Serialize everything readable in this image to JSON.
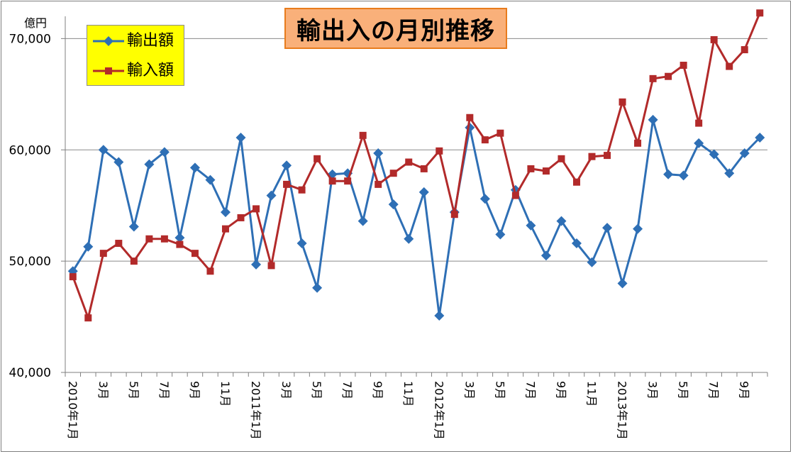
{
  "chart_data": {
    "type": "line",
    "title": "輸出入の月別推移",
    "unit_label": "億円",
    "ylim": [
      40000,
      72000
    ],
    "yticks": [
      40000,
      50000,
      60000,
      70000
    ],
    "ytick_labels": [
      "40,000",
      "50,000",
      "60,000",
      "70,000"
    ],
    "grid": true,
    "legend_position": "top-left",
    "x": [
      "2010年1月",
      "2月",
      "3月",
      "4月",
      "5月",
      "6月",
      "7月",
      "8月",
      "9月",
      "10月",
      "11月",
      "12月",
      "2011年1月",
      "2月",
      "3月",
      "4月",
      "5月",
      "6月",
      "7月",
      "8月",
      "9月",
      "10月",
      "11月",
      "12月",
      "2012年1月",
      "2月",
      "3月",
      "4月",
      "5月",
      "6月",
      "7月",
      "8月",
      "9月",
      "10月",
      "11月",
      "12月",
      "2013年1月",
      "2月",
      "3月",
      "4月",
      "5月",
      "6月",
      "7月",
      "8月",
      "9月",
      "10月"
    ],
    "x_tick_labels": [
      {
        "index": 0,
        "text": "2010年1月"
      },
      {
        "index": 2,
        "text": "3月"
      },
      {
        "index": 4,
        "text": "5月"
      },
      {
        "index": 6,
        "text": "7月"
      },
      {
        "index": 8,
        "text": "9月"
      },
      {
        "index": 10,
        "text": "11月"
      },
      {
        "index": 12,
        "text": "2011年1月"
      },
      {
        "index": 14,
        "text": "3月"
      },
      {
        "index": 16,
        "text": "5月"
      },
      {
        "index": 18,
        "text": "7月"
      },
      {
        "index": 20,
        "text": "9月"
      },
      {
        "index": 22,
        "text": "11月"
      },
      {
        "index": 24,
        "text": "2012年1月"
      },
      {
        "index": 26,
        "text": "3月"
      },
      {
        "index": 28,
        "text": "5月"
      },
      {
        "index": 30,
        "text": "7月"
      },
      {
        "index": 32,
        "text": "9月"
      },
      {
        "index": 34,
        "text": "11月"
      },
      {
        "index": 36,
        "text": "2013年1月"
      },
      {
        "index": 38,
        "text": "3月"
      },
      {
        "index": 40,
        "text": "5月"
      },
      {
        "index": 42,
        "text": "7月"
      },
      {
        "index": 44,
        "text": "9月"
      }
    ],
    "series": [
      {
        "name": "輸出額",
        "color": "#2e6fb5",
        "marker": "diamond",
        "values": [
          49100,
          51300,
          60000,
          58900,
          53100,
          58700,
          59800,
          52100,
          58400,
          57300,
          54400,
          61100,
          49700,
          55900,
          58600,
          51600,
          47600,
          57800,
          57900,
          53600,
          59700,
          55100,
          52000,
          56200,
          45100,
          54400,
          62000,
          55600,
          52400,
          56400,
          53200,
          50500,
          53600,
          51600,
          49900,
          53000,
          48000,
          52900,
          62700,
          57800,
          57700,
          60600,
          59600,
          57900,
          59700,
          61100
        ]
      },
      {
        "name": "輸入額",
        "color": "#b22a2a",
        "marker": "square",
        "values": [
          48600,
          44900,
          50700,
          51600,
          50000,
          52000,
          52000,
          51500,
          50700,
          49100,
          52900,
          53900,
          54700,
          49600,
          56900,
          56400,
          59200,
          57200,
          57200,
          61300,
          56900,
          57900,
          58900,
          58300,
          59900,
          54200,
          62900,
          60900,
          61500,
          55900,
          58300,
          58100,
          59200,
          57100,
          59400,
          59500,
          64300,
          60600,
          66400,
          66600,
          67600,
          62400,
          69900,
          67500,
          69000,
          72300
        ]
      }
    ]
  }
}
